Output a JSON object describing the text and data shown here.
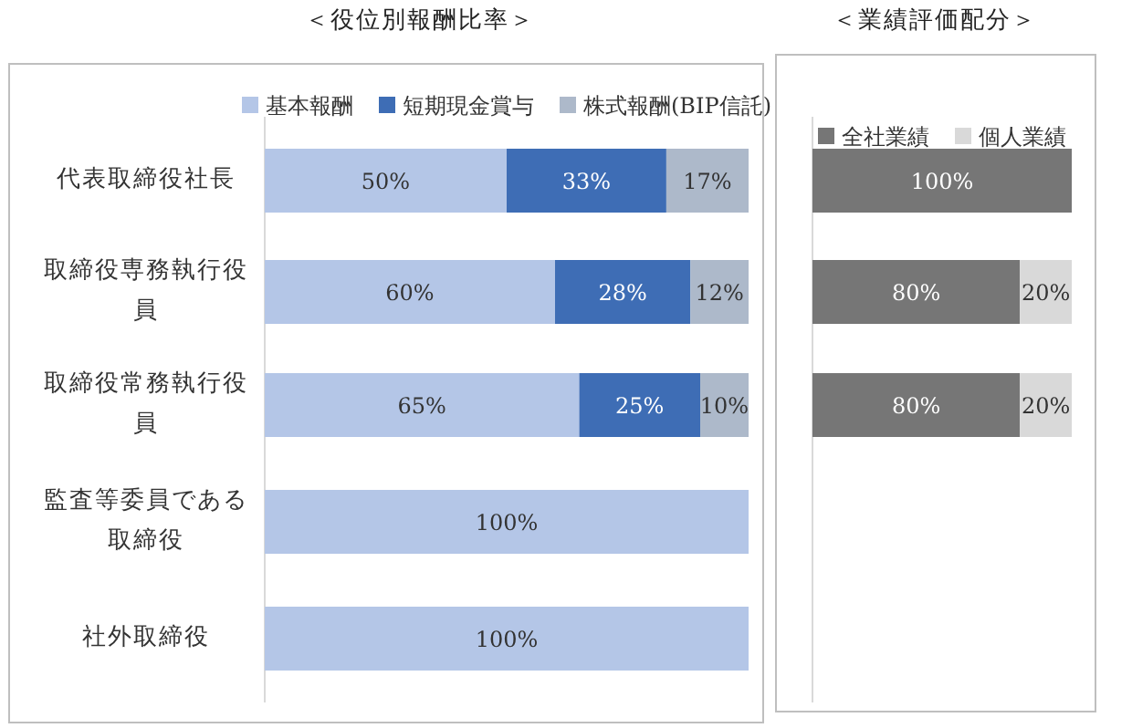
{
  "chart_data": [
    {
      "type": "bar",
      "title": "＜役位別報酬比率＞",
      "orientation": "horizontal",
      "stacked": true,
      "xlim": [
        0,
        100
      ],
      "legend": "top",
      "categories": [
        "代表取締役社長",
        "取締役専務執行役員",
        "取締役常務執行役員",
        "監査等委員である取締役",
        "社外取締役"
      ],
      "series": [
        {
          "name": "基本報酬",
          "color": "#b4c6e7",
          "values": [
            50,
            60,
            65,
            100,
            100
          ],
          "value_labels": [
            "50%",
            "60%",
            "65%",
            "100%",
            "100%"
          ]
        },
        {
          "name": "短期現金賞与",
          "color": "#3e6db5",
          "values": [
            33,
            28,
            25,
            null,
            null
          ],
          "value_labels": [
            "33%",
            "28%",
            "25%",
            null,
            null
          ]
        },
        {
          "name": "株式報酬(BIP信託)",
          "color": "#adb9ca",
          "values": [
            17,
            12,
            10,
            null,
            null
          ],
          "value_labels": [
            "17%",
            "12%",
            "10%",
            null,
            null
          ]
        }
      ]
    },
    {
      "type": "bar",
      "title": "＜業績評価配分＞",
      "orientation": "horizontal",
      "stacked": true,
      "xlim": [
        0,
        100
      ],
      "legend": "top",
      "categories": [
        null,
        null,
        null,
        null,
        null
      ],
      "series": [
        {
          "name": "全社業績",
          "color": "#767676",
          "values": [
            100,
            80,
            80,
            null,
            null
          ],
          "value_labels": [
            "100%",
            "80%",
            "80%",
            null,
            null
          ]
        },
        {
          "name": "個人業績",
          "color": "#d9d9d9",
          "values": [
            null,
            20,
            20,
            null,
            null
          ],
          "value_labels": [
            null,
            "20%",
            "20%",
            null,
            null
          ]
        }
      ]
    }
  ]
}
